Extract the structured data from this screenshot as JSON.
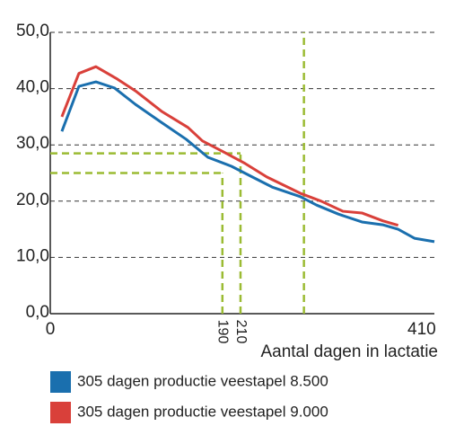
{
  "chart_data": {
    "type": "line",
    "x_label": "Aantal dagen in lactatie",
    "xlim": [
      0,
      424
    ],
    "ylim": [
      0,
      50
    ],
    "xticks": [
      0,
      190,
      210,
      410
    ],
    "yticks": [
      {
        "value": 0,
        "label": "0,0"
      },
      {
        "value": 10,
        "label": "10,0"
      },
      {
        "value": 20,
        "label": "20,0"
      },
      {
        "value": 30,
        "label": "30,0"
      },
      {
        "value": 40,
        "label": "40,0"
      },
      {
        "value": 50,
        "label": "50,0"
      }
    ],
    "grid": true,
    "guide_color": "#9bbb33",
    "guides": [
      {
        "x": 190,
        "y": 25
      },
      {
        "x": 210,
        "y": 28.5
      }
    ],
    "vlines": [
      280
    ],
    "series": [
      {
        "name": "305 dagen productie veestapel 8.500",
        "color": "#1a6fae",
        "x": [
          12.8,
          31.6,
          50.4,
          71,
          94,
          123.5,
          150,
          174,
          200,
          223,
          245,
          276,
          294,
          318,
          344,
          367,
          384,
          402,
          424
        ],
        "values": [
          32.4,
          40.4,
          41.2,
          40.1,
          37.2,
          33.9,
          31.0,
          27.8,
          26.2,
          24.3,
          22.5,
          20.8,
          19.3,
          17.7,
          16.3,
          15.8,
          15.0,
          13.4,
          12.8
        ]
      },
      {
        "name": "305 dagen productie veestapel 9.000",
        "color": "#d9403a",
        "x": [
          12.8,
          31.6,
          50.4,
          74,
          94,
          123.5,
          152,
          168,
          193,
          215,
          239,
          276,
          299,
          323,
          344,
          367,
          384
        ],
        "values": [
          35.0,
          42.7,
          43.9,
          41.7,
          39.6,
          35.9,
          33.1,
          30.7,
          28.6,
          26.7,
          24.3,
          21.4,
          20.0,
          18.2,
          17.9,
          16.5,
          15.7
        ]
      }
    ]
  }
}
